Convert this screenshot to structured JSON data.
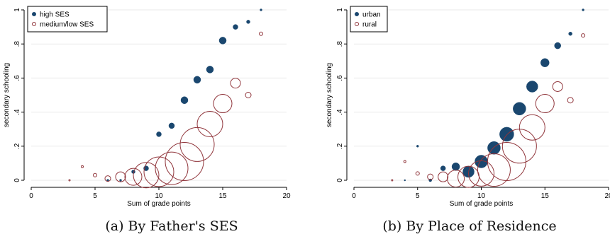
{
  "chart_data": [
    {
      "type": "scatter",
      "caption": "(a) By Father's SES",
      "xlabel": "Sum of grade points",
      "ylabel": "secondary schooling",
      "xlim": [
        0,
        20
      ],
      "ylim": [
        0,
        1
      ],
      "xticks": [
        "0",
        "5",
        "10",
        "15",
        "20"
      ],
      "yticks": [
        "0",
        ".2",
        ".4",
        ".6",
        ".8",
        "1"
      ],
      "grid": true,
      "legend_position": "top-left",
      "series": [
        {
          "name": "high SES",
          "color": "#1a476f",
          "marker": "filled-circle",
          "points": [
            {
              "x": 6,
              "y": 0.0,
              "size": 1.5
            },
            {
              "x": 7,
              "y": 0.0,
              "size": 1.5
            },
            {
              "x": 8,
              "y": 0.05,
              "size": 2.5
            },
            {
              "x": 9,
              "y": 0.07,
              "size": 3.5
            },
            {
              "x": 10,
              "y": 0.27,
              "size": 3.5
            },
            {
              "x": 11,
              "y": 0.32,
              "size": 4
            },
            {
              "x": 12,
              "y": 0.47,
              "size": 5
            },
            {
              "x": 13,
              "y": 0.59,
              "size": 5
            },
            {
              "x": 14,
              "y": 0.65,
              "size": 5
            },
            {
              "x": 15,
              "y": 0.82,
              "size": 5
            },
            {
              "x": 16,
              "y": 0.9,
              "size": 3.5
            },
            {
              "x": 17,
              "y": 0.93,
              "size": 2.5
            },
            {
              "x": 18,
              "y": 1.0,
              "size": 1.5
            }
          ]
        },
        {
          "name": "medium/low SES",
          "color": "#90353b",
          "marker": "hollow-circle",
          "points": [
            {
              "x": 3,
              "y": 0.0,
              "size": 1
            },
            {
              "x": 4,
              "y": 0.08,
              "size": 1.5
            },
            {
              "x": 5,
              "y": 0.03,
              "size": 2.5
            },
            {
              "x": 6,
              "y": 0.01,
              "size": 4
            },
            {
              "x": 7,
              "y": 0.02,
              "size": 7
            },
            {
              "x": 8,
              "y": 0.02,
              "size": 12
            },
            {
              "x": 9,
              "y": 0.03,
              "size": 18
            },
            {
              "x": 10,
              "y": 0.05,
              "size": 21
            },
            {
              "x": 11,
              "y": 0.07,
              "size": 23
            },
            {
              "x": 12,
              "y": 0.11,
              "size": 27
            },
            {
              "x": 13,
              "y": 0.21,
              "size": 24
            },
            {
              "x": 14,
              "y": 0.33,
              "size": 18
            },
            {
              "x": 15,
              "y": 0.45,
              "size": 13
            },
            {
              "x": 16,
              "y": 0.57,
              "size": 7
            },
            {
              "x": 17,
              "y": 0.5,
              "size": 4
            },
            {
              "x": 18,
              "y": 0.86,
              "size": 2.5
            }
          ]
        }
      ]
    },
    {
      "type": "scatter",
      "caption": "(b) By Place of Residence",
      "xlabel": "Sum of grade points",
      "ylabel": "secondary schooling",
      "xlim": [
        0,
        20
      ],
      "ylim": [
        0,
        1
      ],
      "xticks": [
        "0",
        "5",
        "10",
        "15",
        "20"
      ],
      "yticks": [
        "0",
        ".2",
        ".4",
        ".6",
        ".8",
        "1"
      ],
      "grid": true,
      "legend_position": "top-left",
      "series": [
        {
          "name": "urban",
          "color": "#1a476f",
          "marker": "filled-circle",
          "points": [
            {
              "x": 4,
              "y": 0.0,
              "size": 1
            },
            {
              "x": 5,
              "y": 0.2,
              "size": 1.5
            },
            {
              "x": 6,
              "y": 0.0,
              "size": 2
            },
            {
              "x": 7,
              "y": 0.07,
              "size": 3.5
            },
            {
              "x": 8,
              "y": 0.08,
              "size": 5.5
            },
            {
              "x": 9,
              "y": 0.05,
              "size": 8
            },
            {
              "x": 10,
              "y": 0.11,
              "size": 9
            },
            {
              "x": 11,
              "y": 0.19,
              "size": 9
            },
            {
              "x": 12,
              "y": 0.27,
              "size": 10
            },
            {
              "x": 13,
              "y": 0.42,
              "size": 9
            },
            {
              "x": 14,
              "y": 0.55,
              "size": 8
            },
            {
              "x": 15,
              "y": 0.69,
              "size": 6
            },
            {
              "x": 16,
              "y": 0.79,
              "size": 4.5
            },
            {
              "x": 17,
              "y": 0.86,
              "size": 2.5
            },
            {
              "x": 18,
              "y": 1.0,
              "size": 1.5
            }
          ]
        },
        {
          "name": "rural",
          "color": "#90353b",
          "marker": "hollow-circle",
          "points": [
            {
              "x": 3,
              "y": 0.0,
              "size": 1
            },
            {
              "x": 4,
              "y": 0.11,
              "size": 1.5
            },
            {
              "x": 5,
              "y": 0.04,
              "size": 2.5
            },
            {
              "x": 6,
              "y": 0.02,
              "size": 4
            },
            {
              "x": 7,
              "y": 0.02,
              "size": 7
            },
            {
              "x": 8,
              "y": 0.01,
              "size": 12
            },
            {
              "x": 9,
              "y": 0.02,
              "size": 15
            },
            {
              "x": 10,
              "y": 0.04,
              "size": 18
            },
            {
              "x": 11,
              "y": 0.06,
              "size": 23
            },
            {
              "x": 12,
              "y": 0.11,
              "size": 27
            },
            {
              "x": 13,
              "y": 0.2,
              "size": 24
            },
            {
              "x": 14,
              "y": 0.31,
              "size": 18
            },
            {
              "x": 15,
              "y": 0.45,
              "size": 13
            },
            {
              "x": 16,
              "y": 0.55,
              "size": 7
            },
            {
              "x": 17,
              "y": 0.47,
              "size": 4
            },
            {
              "x": 18,
              "y": 0.85,
              "size": 2.5
            }
          ]
        }
      ]
    }
  ]
}
